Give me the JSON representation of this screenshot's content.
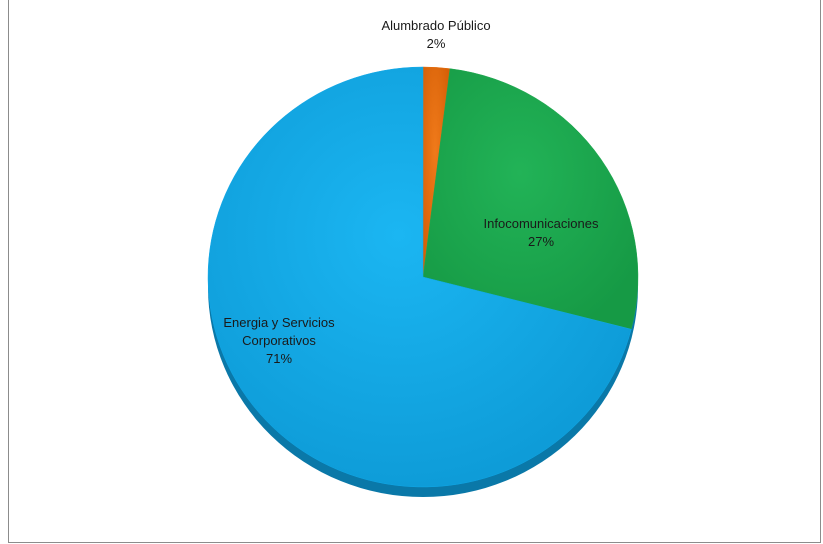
{
  "chart_data": {
    "type": "pie",
    "title": "",
    "categories": [
      "Alumbrado Público",
      "Infocomunicaciones",
      "Energia y Servicios Corporativos"
    ],
    "values": [
      2,
      27,
      71
    ],
    "value_labels": [
      "2%",
      "27%",
      "71%"
    ],
    "label_lines": [
      [
        "Alumbrado Público"
      ],
      [
        "Infocomunicaciones"
      ],
      [
        "Energia y Servicios",
        "Corporativos"
      ]
    ],
    "colors": [
      "#e46c0a",
      "#1fa84f",
      "#10a8e8"
    ],
    "label_placement": [
      "outside-top",
      "inside",
      "inside"
    ],
    "legend": "none",
    "style": "3d-tilted"
  }
}
